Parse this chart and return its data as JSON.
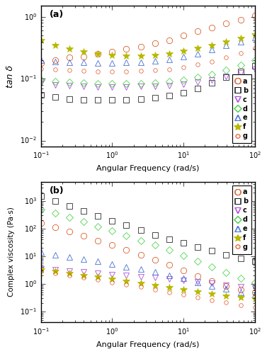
{
  "panel_a": {
    "label": "(a)",
    "ylabel": "tan δ",
    "xlabel": "Angular Frequency (rad/s)",
    "xlim": [
      0.1,
      100
    ],
    "ylim": [
      0.008,
      1.5
    ],
    "series": {
      "a": {
        "color": "#d44000",
        "marker": "o",
        "mfc": "none",
        "ms": 6,
        "x": [
          0.1,
          0.158,
          0.251,
          0.398,
          0.631,
          1.0,
          1.585,
          2.512,
          3.981,
          6.31,
          10.0,
          15.85,
          25.12,
          39.81,
          63.1,
          100.0
        ],
        "y": [
          0.18,
          0.2,
          0.22,
          0.23,
          0.25,
          0.27,
          0.3,
          0.33,
          0.37,
          0.42,
          0.5,
          0.58,
          0.67,
          0.78,
          0.9,
          1.05
        ]
      },
      "b": {
        "color": "#000000",
        "marker": "s",
        "mfc": "none",
        "ms": 6,
        "x": [
          0.1,
          0.158,
          0.251,
          0.398,
          0.631,
          1.0,
          1.585,
          2.512,
          3.981,
          6.31,
          10.0,
          15.85,
          25.12,
          39.81,
          63.1,
          100.0
        ],
        "y": [
          0.055,
          0.05,
          0.047,
          0.046,
          0.045,
          0.045,
          0.046,
          0.047,
          0.049,
          0.053,
          0.06,
          0.07,
          0.085,
          0.105,
          0.13,
          0.16
        ]
      },
      "c": {
        "color": "#9b30d0",
        "marker": "v",
        "mfc": "none",
        "ms": 6,
        "x": [
          0.1,
          0.158,
          0.251,
          0.398,
          0.631,
          1.0,
          1.585,
          2.512,
          3.981,
          6.31,
          10.0,
          15.85,
          25.12,
          39.81,
          63.1,
          100.0
        ],
        "y": [
          0.085,
          0.08,
          0.077,
          0.075,
          0.074,
          0.074,
          0.074,
          0.075,
          0.076,
          0.078,
          0.082,
          0.088,
          0.096,
          0.108,
          0.123,
          0.14
        ]
      },
      "d": {
        "color": "#2ecc2e",
        "marker": "D",
        "mfc": "none",
        "ms": 5,
        "x": [
          0.1,
          0.158,
          0.251,
          0.398,
          0.631,
          1.0,
          1.585,
          2.512,
          3.981,
          6.31,
          10.0,
          15.85,
          25.12,
          39.81,
          63.1,
          100.0
        ],
        "y": [
          0.095,
          0.09,
          0.087,
          0.085,
          0.084,
          0.083,
          0.083,
          0.084,
          0.086,
          0.09,
          0.096,
          0.105,
          0.118,
          0.138,
          0.165,
          0.2
        ]
      },
      "e": {
        "color": "#2255cc",
        "marker": "^",
        "mfc": "none",
        "ms": 6,
        "x": [
          0.1,
          0.158,
          0.251,
          0.398,
          0.631,
          1.0,
          1.585,
          2.512,
          3.981,
          6.31,
          10.0,
          15.85,
          25.12,
          39.81,
          63.1,
          100.0
        ],
        "y": [
          0.2,
          0.19,
          0.185,
          0.182,
          0.18,
          0.18,
          0.182,
          0.185,
          0.192,
          0.205,
          0.225,
          0.255,
          0.295,
          0.345,
          0.4,
          0.46
        ]
      },
      "f": {
        "color": "#b8b800",
        "marker": "*",
        "mfc": "#b8b800",
        "ms": 7,
        "x": [
          0.1,
          0.158,
          0.251,
          0.398,
          0.631,
          1.0,
          1.585,
          2.512,
          3.981,
          6.31,
          10.0,
          15.85,
          25.12,
          39.81,
          63.1,
          100.0
        ],
        "y": [
          0.42,
          0.35,
          0.3,
          0.27,
          0.25,
          0.24,
          0.235,
          0.235,
          0.24,
          0.255,
          0.278,
          0.31,
          0.35,
          0.4,
          0.455,
          0.52
        ]
      },
      "g": {
        "color": "#e05020",
        "marker": "o",
        "mfc": "none",
        "ms": 4,
        "x": [
          0.1,
          0.158,
          0.251,
          0.398,
          0.631,
          1.0,
          1.585,
          2.512,
          3.981,
          6.31,
          10.0,
          15.85,
          25.12,
          39.81,
          63.1,
          100.0
        ],
        "y": [
          0.145,
          0.14,
          0.136,
          0.133,
          0.131,
          0.131,
          0.132,
          0.134,
          0.137,
          0.143,
          0.153,
          0.168,
          0.19,
          0.22,
          0.26,
          0.31
        ]
      }
    }
  },
  "panel_b": {
    "label": "(b)",
    "ylabel": "Complex viscosity (Pa·s)",
    "xlabel": "Angular Frequency (rad/s)",
    "xlim": [
      0.1,
      100
    ],
    "ylim": [
      0.04,
      5000
    ],
    "series": {
      "a": {
        "color": "#d44000",
        "marker": "o",
        "mfc": "none",
        "ms": 6,
        "x": [
          0.1,
          0.158,
          0.251,
          0.398,
          0.631,
          1.0,
          1.585,
          2.512,
          3.981,
          6.31,
          10.0,
          15.85,
          25.12,
          39.81,
          63.1,
          100.0
        ],
        "y": [
          160,
          115,
          80,
          55,
          37,
          25,
          16.5,
          11,
          7.2,
          4.8,
          3.0,
          1.9,
          1.25,
          0.85,
          0.62,
          0.5
        ]
      },
      "b": {
        "color": "#000000",
        "marker": "s",
        "mfc": "none",
        "ms": 6,
        "x": [
          0.1,
          0.158,
          0.251,
          0.398,
          0.631,
          1.0,
          1.585,
          2.512,
          3.981,
          6.31,
          10.0,
          15.85,
          25.12,
          39.81,
          63.1,
          100.0
        ],
        "y": [
          1500,
          1000,
          670,
          445,
          295,
          195,
          130,
          88,
          60,
          42,
          30,
          22,
          16,
          11.5,
          8.5,
          6.5
        ]
      },
      "c": {
        "color": "#9b30d0",
        "marker": "v",
        "mfc": "none",
        "ms": 6,
        "x": [
          0.1,
          0.158,
          0.251,
          0.398,
          0.631,
          1.0,
          1.585,
          2.512,
          3.981,
          6.31,
          10.0,
          15.85,
          25.12,
          39.81,
          63.1,
          100.0
        ],
        "y": [
          3.5,
          3.2,
          2.9,
          2.65,
          2.4,
          2.2,
          2.0,
          1.82,
          1.65,
          1.5,
          1.35,
          1.2,
          1.05,
          0.9,
          0.78,
          0.68
        ]
      },
      "d": {
        "color": "#2ecc2e",
        "marker": "D",
        "mfc": "none",
        "ms": 5,
        "x": [
          0.1,
          0.158,
          0.251,
          0.398,
          0.631,
          1.0,
          1.585,
          2.512,
          3.981,
          6.31,
          10.0,
          15.85,
          25.12,
          39.81,
          63.1,
          100.0
        ],
        "y": [
          500,
          355,
          250,
          175,
          120,
          82,
          55,
          37,
          25,
          16.5,
          10.5,
          6.5,
          4.0,
          2.5,
          1.6,
          1.1
        ]
      },
      "e": {
        "color": "#2255cc",
        "marker": "^",
        "mfc": "none",
        "ms": 6,
        "x": [
          0.1,
          0.158,
          0.251,
          0.398,
          0.631,
          1.0,
          1.585,
          2.512,
          3.981,
          6.31,
          10.0,
          15.85,
          25.12,
          39.81,
          63.1,
          100.0
        ],
        "y": [
          14,
          11.5,
          9.5,
          7.8,
          6.4,
          5.2,
          4.2,
          3.35,
          2.65,
          2.05,
          1.55,
          1.15,
          0.85,
          0.64,
          0.5,
          0.4
        ]
      },
      "f": {
        "color": "#b8b800",
        "marker": "*",
        "mfc": "#b8b800",
        "ms": 7,
        "x": [
          0.1,
          0.158,
          0.251,
          0.398,
          0.631,
          1.0,
          1.585,
          2.512,
          3.981,
          6.31,
          10.0,
          15.85,
          25.12,
          39.81,
          63.1,
          100.0
        ],
        "y": [
          3.2,
          2.8,
          2.4,
          2.05,
          1.75,
          1.48,
          1.25,
          1.05,
          0.88,
          0.74,
          0.62,
          0.52,
          0.44,
          0.37,
          0.32,
          0.28
        ]
      },
      "g": {
        "color": "#e05020",
        "marker": "o",
        "mfc": "none",
        "ms": 4,
        "x": [
          0.1,
          0.158,
          0.251,
          0.398,
          0.631,
          1.0,
          1.585,
          2.512,
          3.981,
          6.31,
          10.0,
          15.85,
          25.12,
          39.81,
          63.1,
          100.0
        ],
        "y": [
          2.8,
          2.4,
          2.0,
          1.68,
          1.4,
          1.15,
          0.95,
          0.77,
          0.62,
          0.5,
          0.4,
          0.32,
          0.26,
          0.21,
          0.17,
          0.14
        ]
      }
    }
  },
  "legend_order": [
    "a",
    "b",
    "c",
    "d",
    "e",
    "f",
    "g"
  ],
  "bg_color": "#f0f0f0"
}
